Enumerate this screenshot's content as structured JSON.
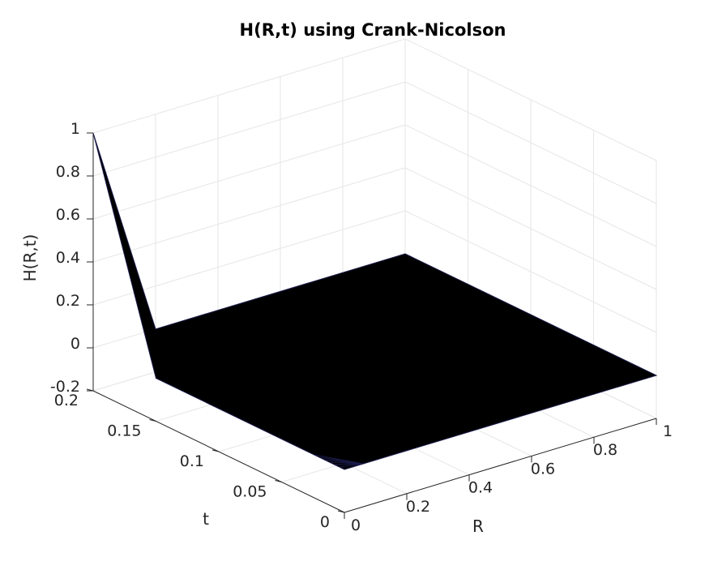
{
  "chart_data": {
    "type": "surface",
    "title": "H(R,t) using Crank-Nicolson",
    "xlabel": "R",
    "ylabel": "t",
    "zlabel": "H(R,t)",
    "xlim": [
      0,
      1
    ],
    "ylim": [
      0,
      0.2
    ],
    "zlim": [
      -0.2,
      1
    ],
    "xticks": [
      0,
      0.2,
      0.4,
      0.6,
      0.8,
      1
    ],
    "xtick_labels": [
      "0",
      "0.2",
      "0.4",
      "0.6",
      "0.8",
      "1"
    ],
    "yticks": [
      0,
      0.05,
      0.1,
      0.15,
      0.2
    ],
    "ytick_labels": [
      "0",
      "0.05",
      "0.1",
      "0.15",
      "0.2"
    ],
    "zticks": [
      -0.2,
      0,
      0.2,
      0.4,
      0.6,
      0.8,
      1
    ],
    "ztick_labels": [
      "-0.2",
      "0",
      "0.2",
      "0.4",
      "0.6",
      "0.8",
      "1"
    ],
    "grid": true,
    "surface_color": "#000000",
    "mesh_color": "#1a1a4a",
    "surface_points": [
      {
        "R": 0,
        "t": 0,
        "H": 0
      },
      {
        "R": 1,
        "t": 0,
        "H": 0
      },
      {
        "R": 1,
        "t": 0.2,
        "H": 0
      },
      {
        "R": 0.2,
        "t": 0.2,
        "H": 0
      },
      {
        "R": 0,
        "t": 0.2,
        "H": 1
      },
      {
        "R": 0,
        "t": 0.15,
        "H": 0
      }
    ]
  }
}
